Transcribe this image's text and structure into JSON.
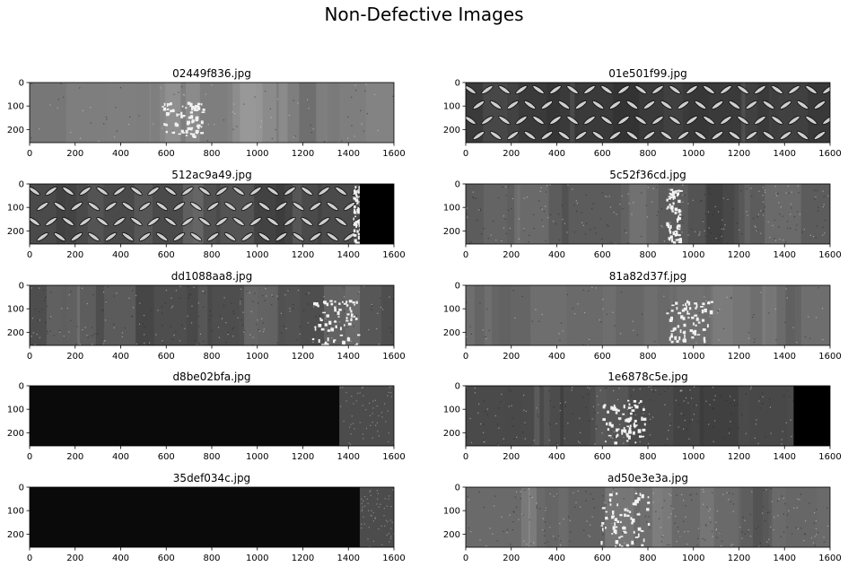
{
  "figure": {
    "suptitle": "Non-Defective Images"
  },
  "chart_data": {
    "type": "image_grid",
    "title": "Non-Defective Images",
    "xticks": [
      0,
      200,
      400,
      600,
      800,
      1000,
      1200,
      1400,
      1600
    ],
    "yticks": [
      0,
      100,
      200
    ],
    "xlim": [
      0,
      1600
    ],
    "ylim": [
      256,
      0
    ],
    "panels": [
      {
        "title": "02449f836.jpg",
        "texture": "smooth-gray",
        "tone": "#7e7e7e",
        "black_from_x": null,
        "bright_spots": [
          [
            580,
            80,
            180,
            150
          ]
        ]
      },
      {
        "title": "01e501f99.jpg",
        "texture": "diamond-plate",
        "tone": "#3a3a3a",
        "black_from_x": null,
        "bright_spots": []
      },
      {
        "title": "512ac9a49.jpg",
        "texture": "diamond-plate",
        "tone": "#4a4a4a",
        "black_from_x": 1450,
        "bright_spots": [
          [
            1420,
            0,
            40,
            256
          ]
        ]
      },
      {
        "title": "5c52f36cd.jpg",
        "texture": "speckled-gray",
        "tone": "#5c5c5c",
        "black_from_x": null,
        "bright_spots": [
          [
            880,
            20,
            60,
            236
          ]
        ]
      },
      {
        "title": "dd1088aa8.jpg",
        "texture": "speckled-gray",
        "tone": "#4e4e4e",
        "black_from_x": null,
        "bright_spots": [
          [
            1240,
            60,
            200,
            196
          ]
        ]
      },
      {
        "title": "81a82d37f.jpg",
        "texture": "smooth-gray",
        "tone": "#6e6e6e",
        "black_from_x": null,
        "bright_spots": [
          [
            880,
            60,
            200,
            180
          ]
        ]
      },
      {
        "title": "d8be02bfa.jpg",
        "texture": "mostly-black",
        "tone": "#0a0a0a",
        "black_from_x": null,
        "bright_spots": [
          [
            1360,
            0,
            240,
            256
          ]
        ]
      },
      {
        "title": "1e6878c5e.jpg",
        "texture": "speckled-gray",
        "tone": "#4a4a4a",
        "black_from_x": 1440,
        "bright_spots": [
          [
            600,
            60,
            200,
            180
          ]
        ]
      },
      {
        "title": "35def034c.jpg",
        "texture": "mostly-black",
        "tone": "#0a0a0a",
        "black_from_x": null,
        "bright_spots": [
          [
            1450,
            0,
            150,
            256
          ]
        ]
      },
      {
        "title": "ad50e3e3a.jpg",
        "texture": "speckled-gray",
        "tone": "#6a6a6a",
        "black_from_x": null,
        "bright_spots": [
          [
            580,
            20,
            220,
            236
          ]
        ]
      }
    ]
  }
}
